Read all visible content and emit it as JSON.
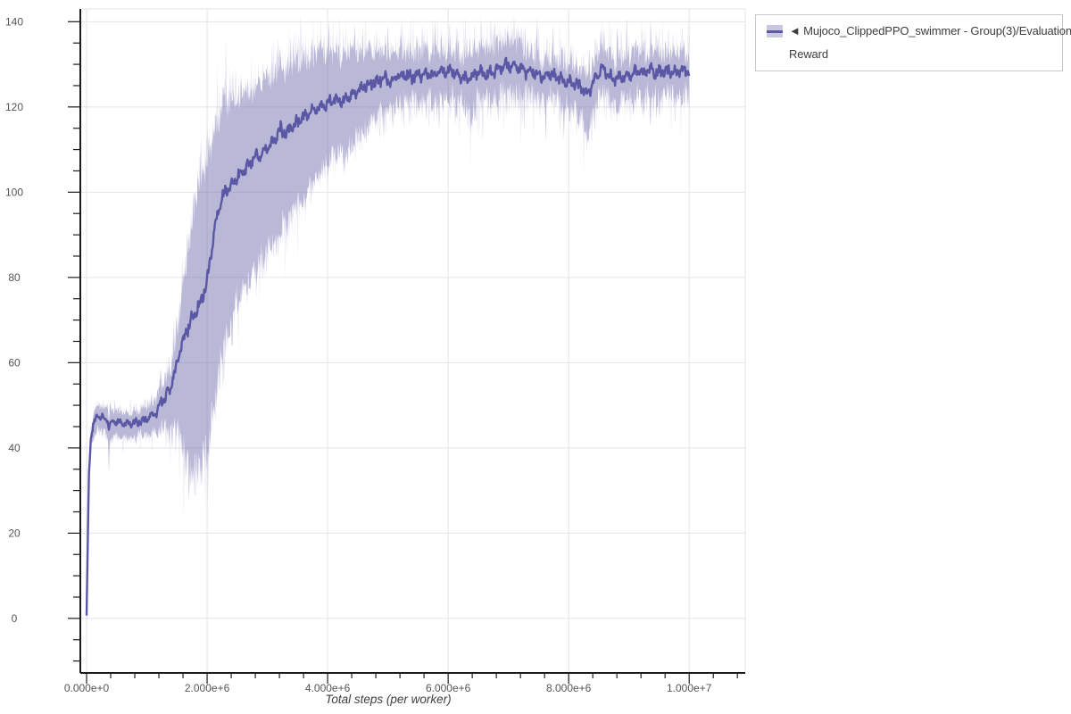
{
  "page": {
    "background": "#ffffff"
  },
  "x_axis": {
    "title": "Total steps (per worker)",
    "tick_values": [
      0,
      2000000,
      4000000,
      6000000,
      8000000,
      10000000
    ],
    "tick_labels": [
      "0.000e+0",
      "2.000e+6",
      "4.000e+6",
      "6.000e+6",
      "8.000e+6",
      "1.000e+7"
    ],
    "minor_step": 400000,
    "lim": [
      -104000,
      10930000
    ]
  },
  "y_axis": {
    "title": "",
    "tick_values": [
      0,
      20,
      40,
      60,
      80,
      100,
      120,
      140
    ],
    "tick_labels": [
      "0",
      "20",
      "40",
      "60",
      "80",
      "100",
      "120",
      "140"
    ],
    "minor_step": 5,
    "lim": [
      -12.8,
      143
    ]
  },
  "legend": {
    "lines": [
      "◄ Mujoco_ClippedPPO_swimmer - Group(3)/Evaluation",
      "Reward"
    ],
    "full_label": "◄ Mujoco_ClippedPPO_swimmer - Group(3)/Evaluation Reward"
  },
  "colors": {
    "line": "#5a57a4",
    "band": "rgba(99,96,167,0.35)",
    "band_fuzz": "rgba(99,96,167,0.15)",
    "grid": "#e4e4e4",
    "outline": "#e4e4e4",
    "axis": "#1c1c1c",
    "tick_label": "#555555",
    "axis_title": "#3f3f3f",
    "legend_border": "#c9c9c9",
    "legend_text": "#3d3d3d"
  },
  "chart_data": {
    "type": "line",
    "title": "",
    "xlabel": "Total steps (per worker)",
    "ylabel": "",
    "legend_position": "top-right-outside",
    "grid": true,
    "xlim": [
      -104000,
      10930000
    ],
    "ylim": [
      -12.8,
      143
    ],
    "x_unit_scale": 1000000,
    "series": [
      {
        "name": "Mujoco_ClippedPPO_swimmer - Group(3)/Evaluation Reward",
        "color": "#5a57a4",
        "mean_anchors": [
          [
            0.0,
            0.5
          ],
          [
            0.02,
            18
          ],
          [
            0.04,
            34
          ],
          [
            0.07,
            42
          ],
          [
            0.1,
            44.5
          ],
          [
            0.14,
            46.5
          ],
          [
            0.18,
            47.8
          ],
          [
            0.22,
            47.2
          ],
          [
            0.27,
            47.0
          ],
          [
            0.32,
            46.6
          ],
          [
            0.355,
            46.3
          ],
          [
            0.37,
            43.8
          ],
          [
            0.385,
            45.8
          ],
          [
            0.45,
            46.3
          ],
          [
            0.55,
            46.0
          ],
          [
            0.65,
            45.6
          ],
          [
            0.75,
            45.7
          ],
          [
            0.85,
            46.0
          ],
          [
            0.95,
            46.4
          ],
          [
            1.05,
            47.3
          ],
          [
            1.12,
            48.2
          ],
          [
            1.18,
            48.6
          ],
          [
            1.22,
            50.6
          ],
          [
            1.3,
            51.6
          ],
          [
            1.38,
            53.5
          ],
          [
            1.45,
            57.0
          ],
          [
            1.52,
            61.0
          ],
          [
            1.6,
            65.5
          ],
          [
            1.68,
            68.0
          ],
          [
            1.76,
            70.5
          ],
          [
            1.83,
            72.5
          ],
          [
            1.9,
            74.5
          ],
          [
            1.96,
            77.0
          ],
          [
            2.02,
            81.0
          ],
          [
            2.08,
            87.0
          ],
          [
            2.14,
            92.5
          ],
          [
            2.2,
            96.5
          ],
          [
            2.28,
            99.5
          ],
          [
            2.38,
            101.5
          ],
          [
            2.5,
            103.5
          ],
          [
            2.62,
            105.5
          ],
          [
            2.75,
            107.5
          ],
          [
            2.9,
            109.0
          ],
          [
            3.05,
            111.0
          ],
          [
            3.15,
            113.5
          ],
          [
            3.22,
            114.8
          ],
          [
            3.3,
            113.8
          ],
          [
            3.42,
            115.8
          ],
          [
            3.55,
            117.0
          ],
          [
            3.7,
            118.5
          ],
          [
            3.85,
            120.0
          ],
          [
            4.0,
            121.0
          ],
          [
            4.15,
            121.8
          ],
          [
            4.28,
            121.2
          ],
          [
            4.4,
            123.0
          ],
          [
            4.55,
            124.0
          ],
          [
            4.7,
            125.5
          ],
          [
            4.85,
            126.3
          ],
          [
            4.95,
            126.8
          ],
          [
            5.05,
            125.9
          ],
          [
            5.15,
            127.2
          ],
          [
            5.3,
            127.4
          ],
          [
            5.45,
            127.2
          ],
          [
            5.6,
            127.8
          ],
          [
            5.75,
            127.6
          ],
          [
            5.9,
            128.3
          ],
          [
            6.05,
            128.4
          ],
          [
            6.2,
            127.3
          ],
          [
            6.35,
            126.6
          ],
          [
            6.5,
            128.3
          ],
          [
            6.65,
            127.4
          ],
          [
            6.8,
            128.9
          ],
          [
            6.95,
            129.5
          ],
          [
            7.1,
            129.6
          ],
          [
            7.25,
            128.6
          ],
          [
            7.4,
            128.2
          ],
          [
            7.55,
            127.0
          ],
          [
            7.7,
            128.0
          ],
          [
            7.85,
            126.6
          ],
          [
            8.0,
            125.8
          ],
          [
            8.12,
            125.2
          ],
          [
            8.22,
            124.6
          ],
          [
            8.31,
            122.8
          ],
          [
            8.4,
            125.5
          ],
          [
            8.5,
            128.3
          ],
          [
            8.57,
            129.2
          ],
          [
            8.65,
            127.8
          ],
          [
            8.75,
            126.6
          ],
          [
            8.85,
            126.9
          ],
          [
            8.95,
            127.4
          ],
          [
            9.05,
            127.9
          ],
          [
            9.15,
            128.5
          ],
          [
            9.25,
            128.2
          ],
          [
            9.35,
            128.7
          ],
          [
            9.45,
            127.9
          ],
          [
            9.55,
            128.1
          ],
          [
            9.65,
            128.6
          ],
          [
            9.75,
            128.2
          ],
          [
            9.85,
            128.8
          ],
          [
            9.95,
            128.3
          ],
          [
            10.0,
            128.0
          ]
        ],
        "upper_offset_anchors": [
          [
            0.0,
            1.5
          ],
          [
            0.05,
            2.0
          ],
          [
            0.15,
            2.5
          ],
          [
            0.3,
            2.6
          ],
          [
            0.5,
            2.5
          ],
          [
            0.7,
            2.4
          ],
          [
            0.9,
            2.5
          ],
          [
            1.1,
            3.0
          ],
          [
            1.25,
            4.0
          ],
          [
            1.4,
            5.5
          ],
          [
            1.5,
            8.0
          ],
          [
            1.6,
            12.0
          ],
          [
            1.7,
            18.0
          ],
          [
            1.8,
            26.0
          ],
          [
            1.9,
            29.5
          ],
          [
            2.0,
            27.0
          ],
          [
            2.1,
            24.0
          ],
          [
            2.2,
            21.0
          ],
          [
            2.35,
            20.5
          ],
          [
            2.5,
            18.5
          ],
          [
            2.7,
            17.0
          ],
          [
            2.9,
            16.5
          ],
          [
            3.1,
            15.5
          ],
          [
            3.35,
            14.5
          ],
          [
            3.6,
            13.5
          ],
          [
            3.8,
            12.5
          ],
          [
            4.0,
            11.5
          ],
          [
            4.2,
            10.5
          ],
          [
            4.35,
            11.5
          ],
          [
            4.5,
            9.0
          ],
          [
            4.7,
            7.5
          ],
          [
            4.9,
            6.5
          ],
          [
            5.1,
            5.5
          ],
          [
            5.3,
            5.0
          ],
          [
            5.6,
            4.8
          ],
          [
            5.9,
            5.0
          ],
          [
            6.2,
            5.2
          ],
          [
            6.5,
            5.0
          ],
          [
            6.8,
            5.2
          ],
          [
            7.0,
            6.0
          ],
          [
            7.08,
            6.5
          ],
          [
            7.2,
            5.0
          ],
          [
            7.4,
            4.5
          ],
          [
            7.6,
            4.2
          ],
          [
            7.9,
            4.3
          ],
          [
            8.2,
            4.2
          ],
          [
            8.5,
            3.8
          ],
          [
            8.8,
            4.5
          ],
          [
            9.1,
            4.2
          ],
          [
            9.4,
            4.3
          ],
          [
            9.7,
            4.3
          ],
          [
            10.0,
            4.6
          ]
        ],
        "lower_offset_anchors": [
          [
            0.0,
            1.5
          ],
          [
            0.05,
            2.5
          ],
          [
            0.15,
            3.0
          ],
          [
            0.3,
            3.0
          ],
          [
            0.355,
            3.5
          ],
          [
            0.37,
            9.5
          ],
          [
            0.385,
            4.0
          ],
          [
            0.5,
            3.2
          ],
          [
            0.7,
            3.0
          ],
          [
            0.9,
            3.0
          ],
          [
            1.1,
            4.0
          ],
          [
            1.25,
            6.0
          ],
          [
            1.4,
            9.0
          ],
          [
            1.5,
            15.0
          ],
          [
            1.6,
            24.0
          ],
          [
            1.68,
            33.0
          ],
          [
            1.75,
            36.0
          ],
          [
            1.85,
            37.5
          ],
          [
            1.95,
            39.0
          ],
          [
            2.05,
            41.0
          ],
          [
            2.15,
            39.0
          ],
          [
            2.25,
            37.0
          ],
          [
            2.4,
            31.0
          ],
          [
            2.55,
            28.0
          ],
          [
            2.75,
            26.5
          ],
          [
            2.95,
            24.5
          ],
          [
            3.15,
            23.0
          ],
          [
            3.4,
            20.5
          ],
          [
            3.65,
            18.0
          ],
          [
            3.85,
            15.0
          ],
          [
            4.05,
            13.0
          ],
          [
            4.25,
            12.0
          ],
          [
            4.45,
            11.0
          ],
          [
            4.65,
            9.5
          ],
          [
            4.85,
            8.0
          ],
          [
            5.05,
            7.0
          ],
          [
            5.25,
            6.0
          ],
          [
            5.5,
            5.5
          ],
          [
            5.8,
            5.8
          ],
          [
            6.1,
            6.0
          ],
          [
            6.3,
            6.5
          ],
          [
            6.38,
            8.5
          ],
          [
            6.5,
            6.0
          ],
          [
            6.8,
            5.8
          ],
          [
            7.1,
            6.0
          ],
          [
            7.3,
            5.5
          ],
          [
            7.6,
            5.0
          ],
          [
            7.9,
            5.5
          ],
          [
            8.1,
            6.0
          ],
          [
            8.25,
            7.0
          ],
          [
            8.32,
            10.0
          ],
          [
            8.42,
            6.5
          ],
          [
            8.6,
            5.0
          ],
          [
            8.8,
            6.0
          ],
          [
            9.0,
            5.5
          ],
          [
            9.3,
            5.0
          ],
          [
            9.6,
            5.0
          ],
          [
            10.0,
            5.5
          ]
        ],
        "band_noise_amp_anchors": [
          [
            0,
            0.8
          ],
          [
            1.0,
            1.0
          ],
          [
            1.3,
            2.0
          ],
          [
            1.6,
            3.5
          ],
          [
            2.0,
            4.0
          ],
          [
            2.5,
            3.2
          ],
          [
            3.0,
            3.0
          ],
          [
            4.0,
            2.6
          ],
          [
            4.8,
            2.2
          ],
          [
            5.2,
            2.6
          ],
          [
            6.0,
            2.8
          ],
          [
            7.0,
            2.8
          ],
          [
            8.0,
            2.8
          ],
          [
            9.0,
            2.6
          ],
          [
            10,
            2.6
          ]
        ],
        "mean_noise_amp_anchors": [
          [
            0,
            0.4
          ],
          [
            1.0,
            0.5
          ],
          [
            1.5,
            0.9
          ],
          [
            2.2,
            0.9
          ],
          [
            3.0,
            0.8
          ],
          [
            5.0,
            0.8
          ],
          [
            10,
            0.85
          ]
        ]
      }
    ],
    "noise": {
      "seed": 7,
      "samples": 1000
    }
  }
}
